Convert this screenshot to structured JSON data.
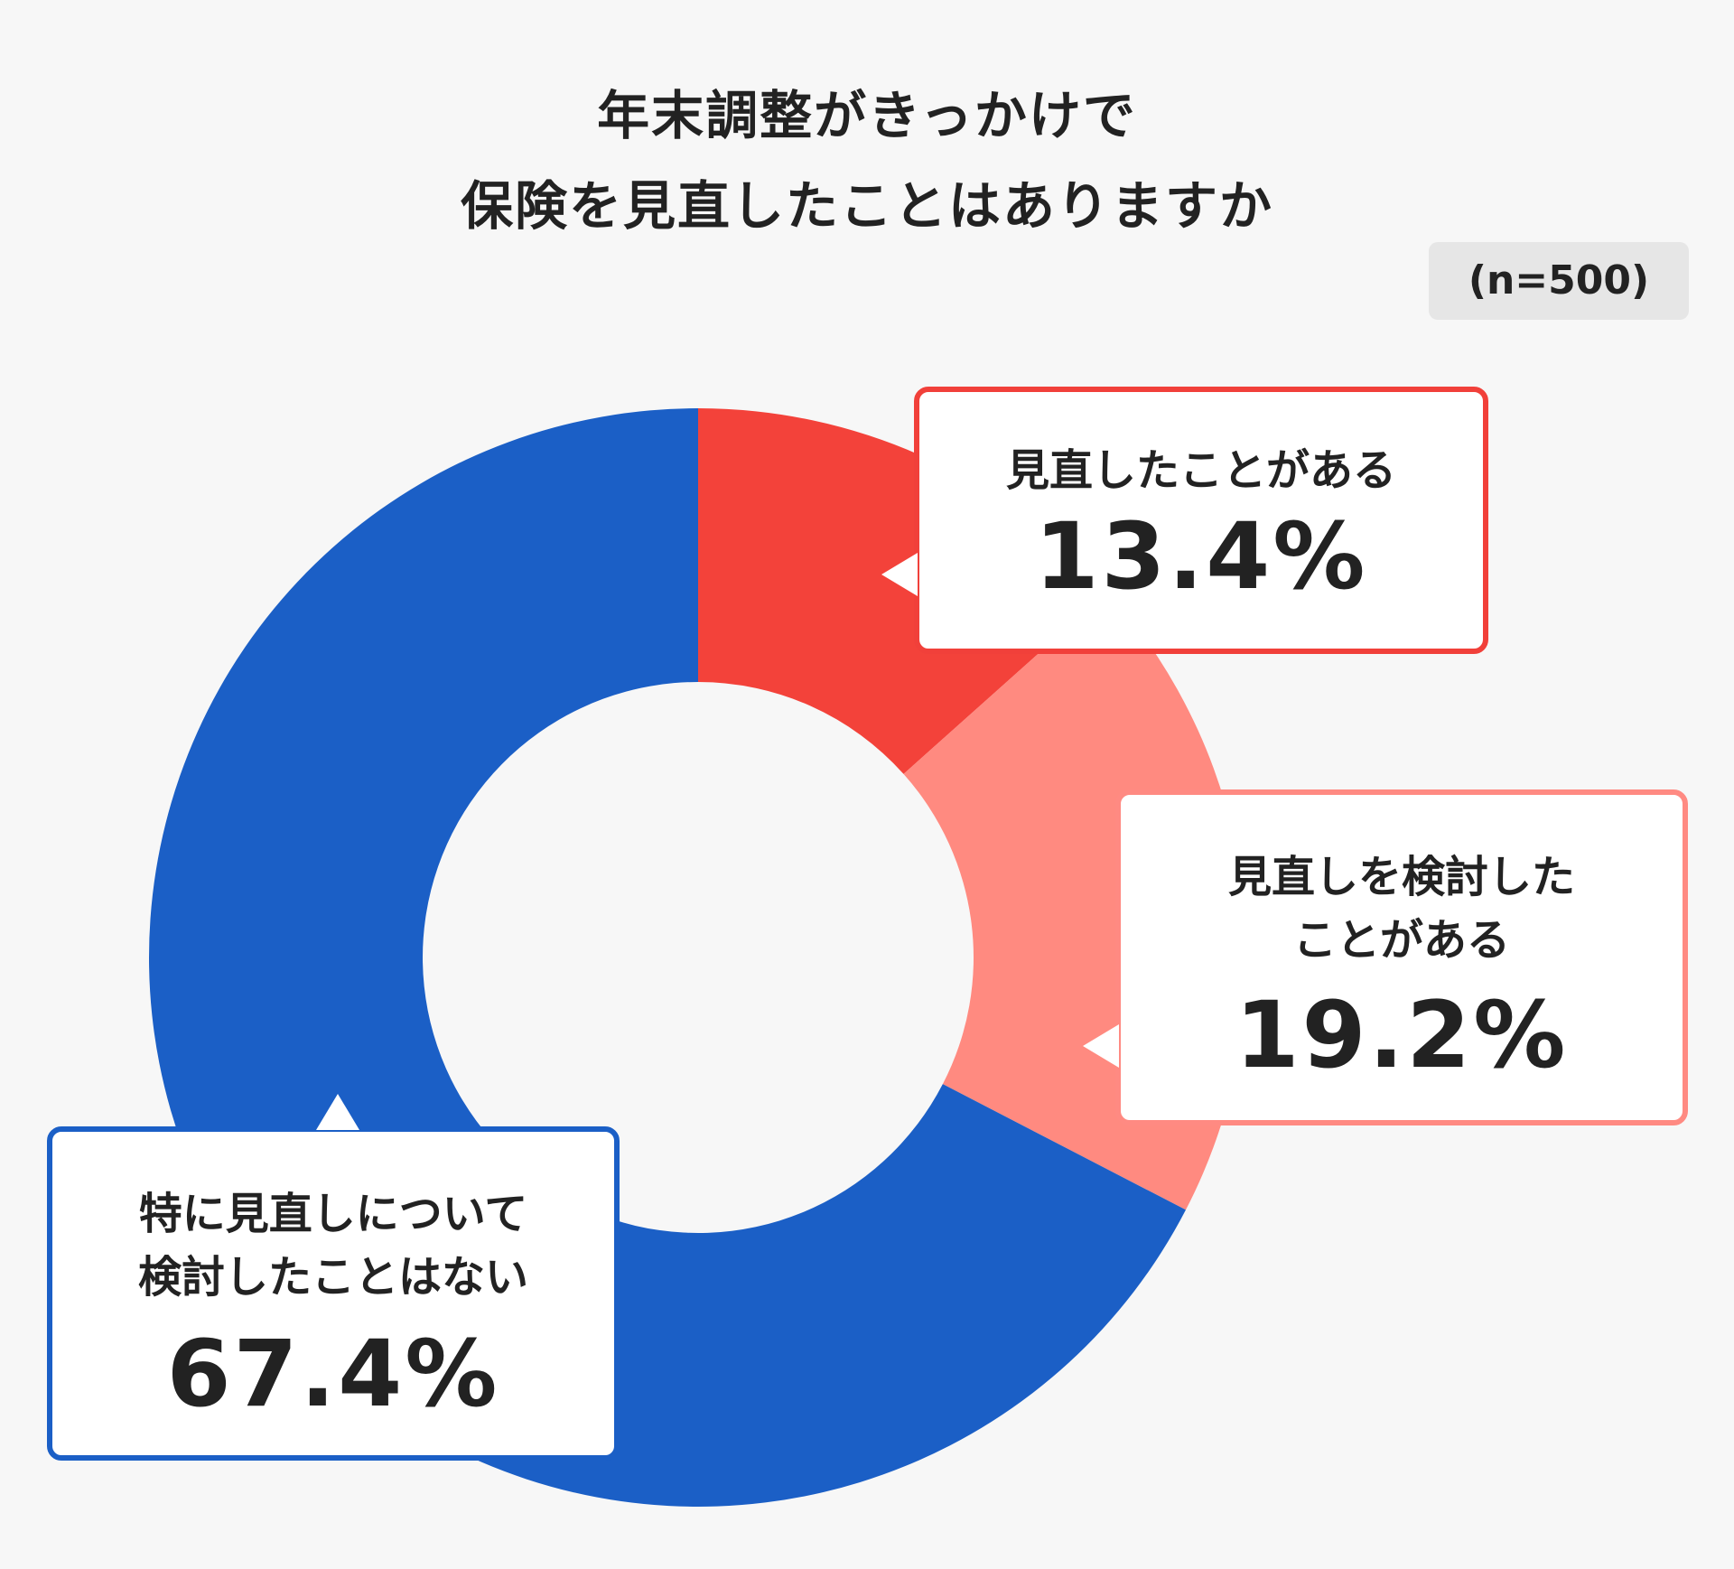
{
  "chart_data": {
    "type": "pie",
    "donut": true,
    "title_lines": [
      "年末調整がきっかけで",
      "保険を見直したことはありますか"
    ],
    "sample_size": "(n=500)",
    "slices": [
      {
        "label": "見直したことがある",
        "value": 13.4,
        "value_label": "13.4%",
        "color": "#f3423a"
      },
      {
        "label": "見直しを検討した\nことがある",
        "value": 19.2,
        "value_label": "19.2%",
        "color": "#ff8a80"
      },
      {
        "label": "特に見直しについて\n検討したことはない",
        "value": 67.4,
        "value_label": "67.4%",
        "color": "#1b5fc6"
      }
    ]
  }
}
